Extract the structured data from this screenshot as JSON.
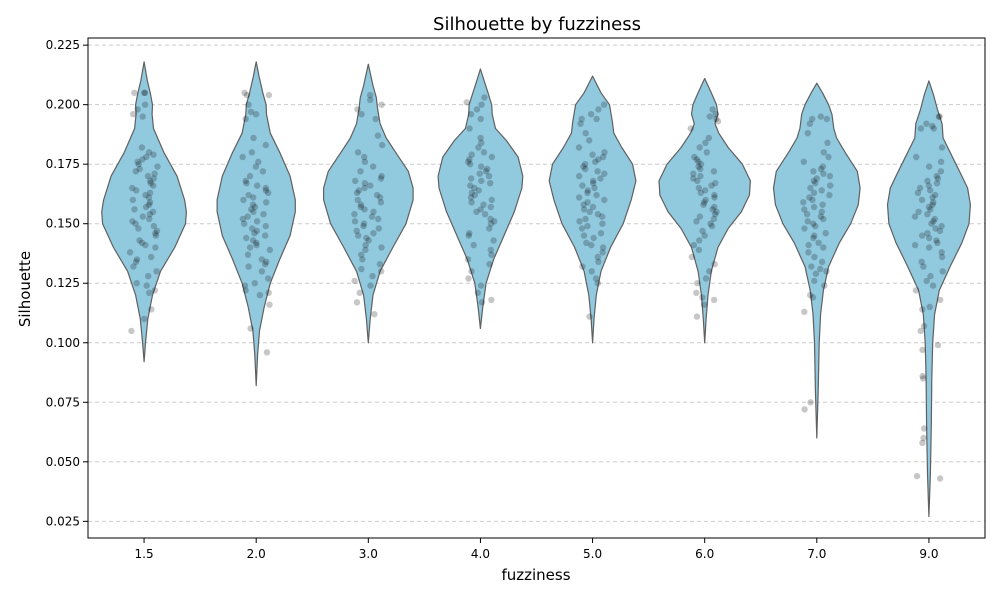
{
  "chart_data": {
    "type": "violin",
    "title": "Silhouette by fuzziness",
    "xlabel": "fuzziness",
    "ylabel": "Silhouette",
    "ylim": [
      0.018,
      0.228
    ],
    "yticks": [
      0.025,
      0.05,
      0.075,
      0.1,
      0.125,
      0.15,
      0.175,
      0.2,
      0.225
    ],
    "ytick_labels": [
      "0.025",
      "0.050",
      "0.075",
      "0.100",
      "0.125",
      "0.150",
      "0.175",
      "0.200",
      "0.225"
    ],
    "categories": [
      "1.5",
      "2.0",
      "3.0",
      "4.0",
      "5.0",
      "6.0",
      "7.0",
      "9.0"
    ],
    "grid": {
      "y": true,
      "style": "dashed"
    },
    "colors": {
      "violin_fill": "#91c9df",
      "violin_edge": "#606060",
      "points": "#000000"
    },
    "violins": [
      {
        "category": "1.5",
        "min": 0.092,
        "max": 0.218,
        "shape": [
          [
            0.092,
            0.0
          ],
          [
            0.1,
            0.03
          ],
          [
            0.11,
            0.08
          ],
          [
            0.12,
            0.18
          ],
          [
            0.13,
            0.35
          ],
          [
            0.14,
            0.65
          ],
          [
            0.15,
            0.88
          ],
          [
            0.155,
            0.9
          ],
          [
            0.16,
            0.86
          ],
          [
            0.17,
            0.7
          ],
          [
            0.18,
            0.42
          ],
          [
            0.19,
            0.2
          ],
          [
            0.196,
            0.17
          ],
          [
            0.2,
            0.18
          ],
          [
            0.205,
            0.13
          ],
          [
            0.21,
            0.07
          ],
          [
            0.218,
            0.0
          ]
        ],
        "points": [
          0.105,
          0.11,
          0.114,
          0.121,
          0.122,
          0.124,
          0.125,
          0.128,
          0.13,
          0.132,
          0.134,
          0.135,
          0.136,
          0.138,
          0.14,
          0.141,
          0.142,
          0.143,
          0.145,
          0.146,
          0.147,
          0.148,
          0.149,
          0.15,
          0.151,
          0.152,
          0.153,
          0.154,
          0.155,
          0.156,
          0.157,
          0.158,
          0.159,
          0.16,
          0.161,
          0.162,
          0.163,
          0.164,
          0.165,
          0.166,
          0.167,
          0.168,
          0.169,
          0.17,
          0.171,
          0.172,
          0.173,
          0.174,
          0.175,
          0.176,
          0.177,
          0.178,
          0.179,
          0.18,
          0.182,
          0.195,
          0.196,
          0.198,
          0.2,
          0.205,
          0.205,
          0.205
        ]
      },
      {
        "category": "2.0",
        "min": 0.082,
        "max": 0.218,
        "shape": [
          [
            0.082,
            0.0
          ],
          [
            0.095,
            0.03
          ],
          [
            0.105,
            0.07
          ],
          [
            0.115,
            0.17
          ],
          [
            0.125,
            0.3
          ],
          [
            0.135,
            0.5
          ],
          [
            0.145,
            0.72
          ],
          [
            0.155,
            0.83
          ],
          [
            0.16,
            0.83
          ],
          [
            0.17,
            0.72
          ],
          [
            0.18,
            0.5
          ],
          [
            0.188,
            0.3
          ],
          [
            0.196,
            0.22
          ],
          [
            0.2,
            0.21
          ],
          [
            0.205,
            0.14
          ],
          [
            0.212,
            0.06
          ],
          [
            0.218,
            0.0
          ]
        ],
        "points": [
          0.096,
          0.106,
          0.116,
          0.12,
          0.121,
          0.122,
          0.124,
          0.125,
          0.127,
          0.13,
          0.132,
          0.133,
          0.134,
          0.135,
          0.137,
          0.139,
          0.14,
          0.141,
          0.142,
          0.143,
          0.144,
          0.145,
          0.146,
          0.147,
          0.148,
          0.149,
          0.15,
          0.151,
          0.152,
          0.153,
          0.154,
          0.155,
          0.156,
          0.157,
          0.158,
          0.159,
          0.16,
          0.161,
          0.162,
          0.163,
          0.164,
          0.165,
          0.166,
          0.167,
          0.168,
          0.17,
          0.172,
          0.174,
          0.176,
          0.178,
          0.18,
          0.183,
          0.186,
          0.194,
          0.196,
          0.197,
          0.2,
          0.204,
          0.204,
          0.205
        ]
      },
      {
        "category": "3.0",
        "min": 0.1,
        "max": 0.217,
        "shape": [
          [
            0.1,
            0.0
          ],
          [
            0.11,
            0.04
          ],
          [
            0.12,
            0.1
          ],
          [
            0.13,
            0.25
          ],
          [
            0.14,
            0.52
          ],
          [
            0.15,
            0.8
          ],
          [
            0.16,
            0.95
          ],
          [
            0.165,
            0.95
          ],
          [
            0.172,
            0.85
          ],
          [
            0.18,
            0.58
          ],
          [
            0.186,
            0.38
          ],
          [
            0.192,
            0.25
          ],
          [
            0.198,
            0.2
          ],
          [
            0.203,
            0.17
          ],
          [
            0.208,
            0.1
          ],
          [
            0.217,
            0.0
          ]
        ],
        "points": [
          0.112,
          0.117,
          0.121,
          0.124,
          0.126,
          0.128,
          0.13,
          0.131,
          0.133,
          0.135,
          0.137,
          0.139,
          0.14,
          0.141,
          0.143,
          0.144,
          0.145,
          0.146,
          0.147,
          0.148,
          0.149,
          0.15,
          0.151,
          0.152,
          0.153,
          0.154,
          0.155,
          0.156,
          0.157,
          0.158,
          0.159,
          0.16,
          0.161,
          0.162,
          0.163,
          0.164,
          0.165,
          0.166,
          0.167,
          0.168,
          0.169,
          0.17,
          0.172,
          0.174,
          0.176,
          0.178,
          0.18,
          0.183,
          0.187,
          0.194,
          0.196,
          0.198,
          0.2,
          0.202,
          0.204
        ]
      },
      {
        "category": "4.0",
        "min": 0.106,
        "max": 0.215,
        "shape": [
          [
            0.106,
            0.0
          ],
          [
            0.115,
            0.05
          ],
          [
            0.125,
            0.12
          ],
          [
            0.135,
            0.28
          ],
          [
            0.145,
            0.5
          ],
          [
            0.155,
            0.72
          ],
          [
            0.165,
            0.88
          ],
          [
            0.17,
            0.9
          ],
          [
            0.178,
            0.8
          ],
          [
            0.185,
            0.55
          ],
          [
            0.19,
            0.32
          ],
          [
            0.196,
            0.25
          ],
          [
            0.2,
            0.24
          ],
          [
            0.205,
            0.16
          ],
          [
            0.21,
            0.08
          ],
          [
            0.215,
            0.0
          ]
        ],
        "points": [
          0.117,
          0.118,
          0.121,
          0.124,
          0.127,
          0.13,
          0.133,
          0.135,
          0.137,
          0.139,
          0.141,
          0.143,
          0.145,
          0.146,
          0.148,
          0.15,
          0.151,
          0.152,
          0.154,
          0.155,
          0.156,
          0.157,
          0.158,
          0.159,
          0.16,
          0.161,
          0.162,
          0.163,
          0.164,
          0.165,
          0.166,
          0.167,
          0.168,
          0.169,
          0.17,
          0.171,
          0.172,
          0.173,
          0.174,
          0.175,
          0.176,
          0.177,
          0.178,
          0.179,
          0.18,
          0.182,
          0.184,
          0.186,
          0.19,
          0.194,
          0.196,
          0.198,
          0.2,
          0.201,
          0.203
        ]
      },
      {
        "category": "5.0",
        "min": 0.1,
        "max": 0.212,
        "shape": [
          [
            0.1,
            0.0
          ],
          [
            0.11,
            0.03
          ],
          [
            0.12,
            0.08
          ],
          [
            0.13,
            0.18
          ],
          [
            0.14,
            0.38
          ],
          [
            0.15,
            0.65
          ],
          [
            0.16,
            0.82
          ],
          [
            0.168,
            0.92
          ],
          [
            0.175,
            0.85
          ],
          [
            0.182,
            0.62
          ],
          [
            0.188,
            0.45
          ],
          [
            0.193,
            0.42
          ],
          [
            0.2,
            0.36
          ],
          [
            0.205,
            0.18
          ],
          [
            0.212,
            0.0
          ]
        ],
        "points": [
          0.111,
          0.125,
          0.127,
          0.13,
          0.132,
          0.134,
          0.136,
          0.138,
          0.14,
          0.141,
          0.142,
          0.144,
          0.145,
          0.146,
          0.148,
          0.149,
          0.15,
          0.151,
          0.152,
          0.153,
          0.154,
          0.155,
          0.156,
          0.157,
          0.158,
          0.159,
          0.16,
          0.161,
          0.162,
          0.163,
          0.164,
          0.165,
          0.166,
          0.167,
          0.168,
          0.169,
          0.17,
          0.171,
          0.172,
          0.173,
          0.174,
          0.175,
          0.176,
          0.177,
          0.178,
          0.179,
          0.18,
          0.182,
          0.185,
          0.188,
          0.192,
          0.194,
          0.194,
          0.196,
          0.198,
          0.2
        ]
      },
      {
        "category": "6.0",
        "min": 0.1,
        "max": 0.211,
        "shape": [
          [
            0.1,
            0.0
          ],
          [
            0.11,
            0.03
          ],
          [
            0.12,
            0.07
          ],
          [
            0.13,
            0.14
          ],
          [
            0.14,
            0.28
          ],
          [
            0.148,
            0.5
          ],
          [
            0.155,
            0.78
          ],
          [
            0.162,
            0.95
          ],
          [
            0.168,
            0.97
          ],
          [
            0.175,
            0.8
          ],
          [
            0.182,
            0.5
          ],
          [
            0.188,
            0.3
          ],
          [
            0.192,
            0.22
          ],
          [
            0.196,
            0.28
          ],
          [
            0.2,
            0.25
          ],
          [
            0.205,
            0.14
          ],
          [
            0.211,
            0.0
          ]
        ],
        "points": [
          0.111,
          0.116,
          0.118,
          0.119,
          0.121,
          0.125,
          0.127,
          0.13,
          0.133,
          0.136,
          0.139,
          0.141,
          0.143,
          0.145,
          0.147,
          0.149,
          0.15,
          0.151,
          0.152,
          0.153,
          0.154,
          0.155,
          0.156,
          0.157,
          0.158,
          0.159,
          0.16,
          0.161,
          0.162,
          0.163,
          0.164,
          0.165,
          0.166,
          0.167,
          0.168,
          0.169,
          0.17,
          0.171,
          0.172,
          0.173,
          0.174,
          0.175,
          0.176,
          0.177,
          0.178,
          0.18,
          0.182,
          0.184,
          0.186,
          0.19,
          0.193,
          0.194,
          0.195,
          0.196,
          0.198
        ]
      },
      {
        "category": "7.0",
        "min": 0.06,
        "max": 0.209,
        "shape": [
          [
            0.06,
            0.0
          ],
          [
            0.08,
            0.03
          ],
          [
            0.1,
            0.05
          ],
          [
            0.112,
            0.08
          ],
          [
            0.122,
            0.14
          ],
          [
            0.132,
            0.25
          ],
          [
            0.142,
            0.48
          ],
          [
            0.15,
            0.72
          ],
          [
            0.158,
            0.88
          ],
          [
            0.165,
            0.92
          ],
          [
            0.172,
            0.86
          ],
          [
            0.18,
            0.6
          ],
          [
            0.186,
            0.42
          ],
          [
            0.19,
            0.36
          ],
          [
            0.196,
            0.32
          ],
          [
            0.2,
            0.25
          ],
          [
            0.205,
            0.12
          ],
          [
            0.209,
            0.0
          ]
        ],
        "points": [
          0.072,
          0.075,
          0.113,
          0.119,
          0.12,
          0.124,
          0.126,
          0.129,
          0.13,
          0.131,
          0.132,
          0.134,
          0.136,
          0.138,
          0.14,
          0.141,
          0.142,
          0.144,
          0.145,
          0.146,
          0.148,
          0.149,
          0.15,
          0.151,
          0.152,
          0.153,
          0.154,
          0.155,
          0.156,
          0.157,
          0.158,
          0.159,
          0.16,
          0.161,
          0.162,
          0.163,
          0.164,
          0.165,
          0.166,
          0.167,
          0.168,
          0.169,
          0.17,
          0.171,
          0.172,
          0.173,
          0.174,
          0.176,
          0.178,
          0.18,
          0.184,
          0.188,
          0.192,
          0.194,
          0.194,
          0.195
        ]
      },
      {
        "category": "9.0",
        "min": 0.027,
        "max": 0.21,
        "shape": [
          [
            0.027,
            0.0
          ],
          [
            0.045,
            0.03
          ],
          [
            0.065,
            0.05
          ],
          [
            0.085,
            0.06
          ],
          [
            0.1,
            0.08
          ],
          [
            0.112,
            0.12
          ],
          [
            0.122,
            0.22
          ],
          [
            0.132,
            0.45
          ],
          [
            0.142,
            0.7
          ],
          [
            0.15,
            0.85
          ],
          [
            0.158,
            0.88
          ],
          [
            0.165,
            0.82
          ],
          [
            0.172,
            0.65
          ],
          [
            0.18,
            0.45
          ],
          [
            0.186,
            0.3
          ],
          [
            0.192,
            0.28
          ],
          [
            0.198,
            0.18
          ],
          [
            0.204,
            0.1
          ],
          [
            0.21,
            0.0
          ]
        ],
        "points": [
          0.043,
          0.044,
          0.058,
          0.06,
          0.064,
          0.085,
          0.086,
          0.097,
          0.099,
          0.105,
          0.107,
          0.114,
          0.115,
          0.118,
          0.122,
          0.124,
          0.126,
          0.128,
          0.13,
          0.132,
          0.134,
          0.136,
          0.138,
          0.14,
          0.141,
          0.142,
          0.143,
          0.144,
          0.145,
          0.146,
          0.147,
          0.148,
          0.149,
          0.15,
          0.151,
          0.152,
          0.153,
          0.154,
          0.155,
          0.156,
          0.157,
          0.158,
          0.159,
          0.16,
          0.161,
          0.162,
          0.163,
          0.164,
          0.165,
          0.166,
          0.167,
          0.168,
          0.169,
          0.17,
          0.172,
          0.174,
          0.176,
          0.178,
          0.182,
          0.19,
          0.19,
          0.191,
          0.192,
          0.195,
          0.195
        ]
      }
    ]
  }
}
